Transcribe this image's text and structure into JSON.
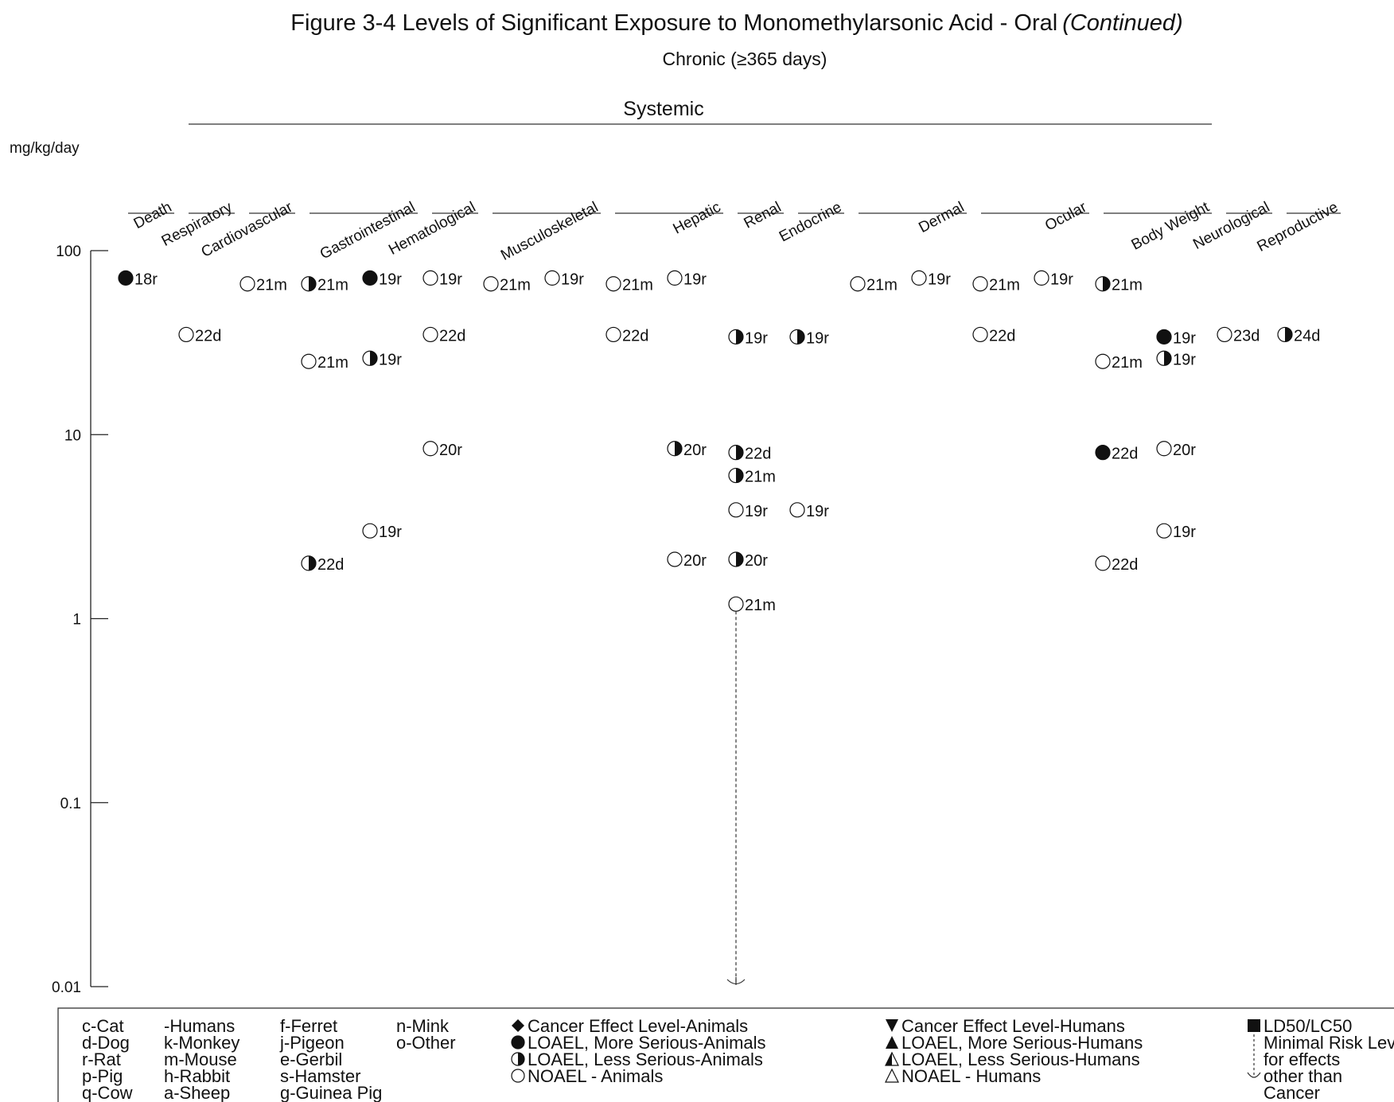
{
  "chart_data": {
    "type": "scatter",
    "title": "Figure 3-4  Levels of Significant Exposure to Monomethylarsonic Acid - Oral",
    "title_suffix": "(Continued)",
    "subtitle": "Chronic (≥365 days)",
    "ylabel": "mg/kg/day",
    "y_scale": "log",
    "ylim": [
      0.01,
      100
    ],
    "yticks": [
      {
        "value": 100,
        "label": "100"
      },
      {
        "value": 10,
        "label": "10"
      },
      {
        "value": 1,
        "label": "1"
      },
      {
        "value": 0.1,
        "label": "0.1"
      },
      {
        "value": 0.01,
        "label": "0.01"
      }
    ],
    "group_label": "Systemic",
    "categories": [
      "Death",
      "Respiratory",
      "Cardiovascular",
      "Gastrointestinal",
      "Hematological",
      "Musculoskeletal",
      "Hepatic",
      "Renal",
      "Endocrine",
      "Dermal",
      "Ocular",
      "Body Weight",
      "Neurological",
      "Reproductive"
    ],
    "points": [
      {
        "category": "Death",
        "col": 0,
        "value": 71,
        "symbol": "filled",
        "label": "18r"
      },
      {
        "category": "Respiratory",
        "col": 0,
        "value": 35,
        "symbol": "open",
        "label": "22d"
      },
      {
        "category": "Cardiovascular",
        "col": 0,
        "value": 66,
        "symbol": "open",
        "label": "21m"
      },
      {
        "category": "Gastrointestinal",
        "col": 0,
        "value": 66,
        "symbol": "half",
        "label": "21m"
      },
      {
        "category": "Gastrointestinal",
        "col": 1,
        "value": 71,
        "symbol": "filled",
        "label": "19r"
      },
      {
        "category": "Gastrointestinal",
        "col": 0,
        "value": 25,
        "symbol": "open",
        "label": "21m"
      },
      {
        "category": "Gastrointestinal",
        "col": 1,
        "value": 26,
        "symbol": "half",
        "label": "19r"
      },
      {
        "category": "Gastrointestinal",
        "col": 1,
        "value": 3,
        "symbol": "open",
        "label": "19r"
      },
      {
        "category": "Gastrointestinal",
        "col": 0,
        "value": 2,
        "symbol": "half",
        "label": "22d"
      },
      {
        "category": "Hematological",
        "col": 0,
        "value": 71,
        "symbol": "open",
        "label": "19r"
      },
      {
        "category": "Hematological",
        "col": 0,
        "value": 35,
        "symbol": "open",
        "label": "22d"
      },
      {
        "category": "Hematological",
        "col": 0,
        "value": 8.4,
        "symbol": "open",
        "label": "20r"
      },
      {
        "category": "Musculoskeletal",
        "col": 0,
        "value": 66,
        "symbol": "open",
        "label": "21m"
      },
      {
        "category": "Musculoskeletal",
        "col": 1,
        "value": 71,
        "symbol": "open",
        "label": "19r"
      },
      {
        "category": "Hepatic",
        "col": 0,
        "value": 66,
        "symbol": "open",
        "label": "21m"
      },
      {
        "category": "Hepatic",
        "col": 1,
        "value": 71,
        "symbol": "open",
        "label": "19r"
      },
      {
        "category": "Hepatic",
        "col": 0,
        "value": 35,
        "symbol": "open",
        "label": "22d"
      },
      {
        "category": "Hepatic",
        "col": 1,
        "value": 8.4,
        "symbol": "half",
        "label": "20r"
      },
      {
        "category": "Hepatic",
        "col": 1,
        "value": 2.1,
        "symbol": "open",
        "label": "20r"
      },
      {
        "category": "Renal",
        "col": 0,
        "value": 34,
        "symbol": "half",
        "label": "19r"
      },
      {
        "category": "Renal",
        "col": 0,
        "value": 8,
        "symbol": "half",
        "label": "22d"
      },
      {
        "category": "Renal",
        "col": 0,
        "value": 6,
        "symbol": "half",
        "label": "21m"
      },
      {
        "category": "Renal",
        "col": 0,
        "value": 3.9,
        "symbol": "open",
        "label": "19r"
      },
      {
        "category": "Renal",
        "col": 0,
        "value": 2.1,
        "symbol": "half",
        "label": "20r"
      },
      {
        "category": "Renal",
        "col": 0,
        "value": 1.2,
        "symbol": "open",
        "label": "21m"
      },
      {
        "category": "Endocrine",
        "col": 0,
        "value": 34,
        "symbol": "half",
        "label": "19r"
      },
      {
        "category": "Endocrine",
        "col": 0,
        "value": 3.9,
        "symbol": "open",
        "label": "19r"
      },
      {
        "category": "Dermal",
        "col": 0,
        "value": 66,
        "symbol": "open",
        "label": "21m"
      },
      {
        "category": "Dermal",
        "col": 1,
        "value": 71,
        "symbol": "open",
        "label": "19r"
      },
      {
        "category": "Ocular",
        "col": 0,
        "value": 66,
        "symbol": "open",
        "label": "21m"
      },
      {
        "category": "Ocular",
        "col": 1,
        "value": 71,
        "symbol": "open",
        "label": "19r"
      },
      {
        "category": "Ocular",
        "col": 0,
        "value": 35,
        "symbol": "open",
        "label": "22d"
      },
      {
        "category": "Body Weight",
        "col": 0,
        "value": 66,
        "symbol": "half",
        "label": "21m"
      },
      {
        "category": "Body Weight",
        "col": 1,
        "value": 34,
        "symbol": "filled",
        "label": "19r"
      },
      {
        "category": "Body Weight",
        "col": 0,
        "value": 25,
        "symbol": "open",
        "label": "21m"
      },
      {
        "category": "Body Weight",
        "col": 1,
        "value": 26,
        "symbol": "half",
        "label": "19r"
      },
      {
        "category": "Body Weight",
        "col": 0,
        "value": 8,
        "symbol": "filled",
        "label": "22d"
      },
      {
        "category": "Body Weight",
        "col": 1,
        "value": 8.4,
        "symbol": "open",
        "label": "20r"
      },
      {
        "category": "Body Weight",
        "col": 1,
        "value": 3,
        "symbol": "open",
        "label": "19r"
      },
      {
        "category": "Body Weight",
        "col": 0,
        "value": 2,
        "symbol": "open",
        "label": "22d"
      },
      {
        "category": "Neurological",
        "col": 0,
        "value": 35,
        "symbol": "open",
        "label": "23d"
      },
      {
        "category": "Reproductive",
        "col": 0,
        "value": 35,
        "symbol": "half",
        "label": "24d"
      }
    ],
    "mrl": {
      "category": "Renal",
      "from": 1.2,
      "to": 0.01,
      "style": "dashed arrow down"
    }
  },
  "legend": {
    "species": [
      [
        "c-Cat",
        "-Humans",
        "f-Ferret",
        "n-Mink"
      ],
      [
        "d-Dog",
        "k-Monkey",
        "j-Pigeon",
        "o-Other"
      ],
      [
        "r-Rat",
        "m-Mouse",
        "e-Gerbil",
        ""
      ],
      [
        "p-Pig",
        "h-Rabbit",
        "s-Hamster",
        ""
      ],
      [
        "q-Cow",
        "a-Sheep",
        "g-Guinea Pig",
        ""
      ]
    ],
    "animals": [
      {
        "symbol": "diamond",
        "label": "Cancer Effect Level-Animals"
      },
      {
        "symbol": "filled",
        "label": "LOAEL, More Serious-Animals"
      },
      {
        "symbol": "half",
        "label": "LOAEL, Less Serious-Animals"
      },
      {
        "symbol": "open",
        "label": "NOAEL - Animals"
      }
    ],
    "humans": [
      {
        "symbol": "tri-down",
        "label": "Cancer Effect Level-Humans"
      },
      {
        "symbol": "tri-filled",
        "label": "LOAEL, More Serious-Humans"
      },
      {
        "symbol": "tri-half",
        "label": "LOAEL, Less Serious-Humans"
      },
      {
        "symbol": "tri-open",
        "label": "NOAEL - Humans"
      }
    ],
    "other": [
      {
        "symbol": "square",
        "label": "LD50/LC50"
      },
      {
        "symbol": "mrl",
        "label": "Minimal Risk Level"
      },
      {
        "symbol": "",
        "label": "for effects"
      },
      {
        "symbol": "",
        "label": "other than"
      },
      {
        "symbol": "",
        "label": "Cancer"
      }
    ]
  }
}
